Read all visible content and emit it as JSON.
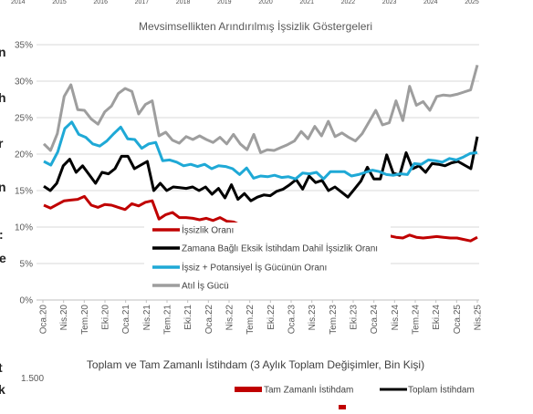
{
  "top_strip_years": [
    "2014",
    "2015",
    "2016",
    "2017",
    "2018",
    "2019",
    "2020",
    "2021",
    "2022",
    "2023",
    "2024",
    "2025"
  ],
  "edge_fragments": [
    "n",
    "h",
    "r",
    "n",
    ":",
    "e",
    "t",
    "k"
  ],
  "colors": {
    "unemployment": "#c00000",
    "time_related": "#000000",
    "potential": "#1fa9d6",
    "idle": "#9e9e9e",
    "grid": "#d9d9d9"
  },
  "chart_data": [
    {
      "type": "line",
      "title": "Mevsimsellikten Arındırılmış İşsizlik Göstergeleri",
      "ylim": [
        0,
        35
      ],
      "y_ticks": [
        "0%",
        "5%",
        "10%",
        "15%",
        "20%",
        "25%",
        "30%",
        "35%"
      ],
      "x_tick_labels": [
        "Oca.20",
        "Nis.20",
        "Tem.20",
        "Eki.20",
        "Oca.21",
        "Nis.21",
        "Tem.21",
        "Eki.21",
        "Oca.22",
        "Nis.22",
        "Tem.22",
        "Eki.22",
        "Oca.23",
        "Nis.23",
        "Tem.23",
        "Eki.23",
        "Oca.24",
        "Nis.24",
        "Tem.24",
        "Eki.24",
        "Oca.25",
        "Nis.25"
      ],
      "legend_position": "bottom-left",
      "series": [
        {
          "name": "İşsizlik Oranı",
          "color_key": "unemployment",
          "values": [
            13.0,
            12.6,
            13.1,
            13.6,
            13.7,
            13.8,
            14.2,
            13.0,
            12.7,
            13.1,
            13.0,
            12.7,
            12.4,
            13.2,
            12.9,
            13.4,
            13.6,
            11.1,
            11.7,
            12.0,
            11.3,
            11.3,
            11.2,
            11.0,
            11.2,
            10.9,
            11.3,
            10.8,
            10.7,
            10.3,
            10.4,
            10.0,
            10.2,
            10.3,
            10.0,
            10.2,
            10.0,
            9.8,
            10.0,
            10.2,
            9.8,
            9.5,
            9.4,
            9.3,
            9.1,
            9.0,
            8.6,
            8.8,
            8.6,
            8.9,
            8.7,
            8.8,
            8.6,
            8.5,
            8.9,
            8.6,
            8.5,
            8.6,
            8.7,
            8.6,
            8.5,
            8.5,
            8.3,
            8.1,
            8.6
          ]
        },
        {
          "name": "Zamana Bağlı Eksik İstihdam Dahil İşsizlik Oranı",
          "color_key": "time_related",
          "values": [
            15.6,
            15.0,
            16.0,
            18.4,
            19.3,
            17.5,
            18.4,
            17.2,
            16.0,
            17.5,
            17.3,
            18.0,
            19.7,
            19.7,
            18.0,
            18.5,
            19.0,
            15.0,
            16.0,
            15.0,
            15.5,
            15.4,
            15.3,
            15.5,
            15.0,
            15.5,
            14.5,
            15.3,
            14.0,
            15.8,
            13.8,
            14.6,
            13.6,
            14.1,
            14.4,
            14.3,
            14.9,
            15.2,
            15.8,
            16.5,
            15.2,
            17.0,
            16.1,
            16.4,
            15.0,
            15.5,
            14.8,
            14.1,
            15.2,
            16.3,
            18.2,
            16.6,
            16.6,
            19.9,
            17.4,
            17.1,
            20.2,
            18.0,
            18.4,
            17.5,
            18.7,
            18.6,
            18.4,
            18.8,
            19.0,
            18.5,
            18.0,
            22.4
          ]
        },
        {
          "name": "İşsiz + Potansiyel İş Gücünün Oranı",
          "color_key": "potential",
          "values": [
            19.0,
            18.5,
            20.3,
            23.5,
            24.4,
            22.7,
            22.3,
            21.4,
            21.1,
            21.8,
            22.8,
            23.7,
            22.1,
            22.0,
            20.8,
            21.4,
            21.6,
            19.1,
            19.2,
            18.9,
            18.4,
            18.6,
            18.3,
            18.6,
            18.0,
            18.4,
            18.3,
            18.0,
            17.2,
            18.1,
            16.7,
            17.0,
            16.9,
            17.1,
            16.8,
            16.9,
            16.6,
            17.4,
            17.3,
            17.5,
            16.6,
            17.6,
            17.6,
            17.6,
            17.0,
            17.2,
            17.5,
            17.8,
            17.6,
            17.2,
            17.1,
            17.3,
            17.2,
            18.7,
            18.6,
            19.2,
            19.1,
            18.9,
            19.4,
            19.2,
            19.6,
            20.1,
            20.2
          ]
        },
        {
          "name": "Atıl İş Gücü",
          "color_key": "idle",
          "values": [
            21.4,
            20.5,
            22.8,
            27.9,
            29.5,
            26.1,
            26.0,
            24.8,
            24.1,
            25.8,
            26.6,
            28.3,
            29.0,
            28.6,
            25.5,
            26.8,
            27.3,
            22.5,
            23.0,
            21.9,
            21.5,
            22.4,
            22.0,
            22.5,
            22.0,
            21.6,
            22.3,
            21.4,
            22.7,
            21.4,
            20.6,
            22.7,
            20.2,
            20.6,
            20.5,
            20.9,
            21.3,
            21.8,
            23.1,
            22.1,
            23.8,
            22.5,
            24.5,
            22.4,
            22.9,
            22.3,
            21.8,
            22.8,
            24.4,
            26.0,
            24.0,
            24.3,
            27.3,
            24.6,
            29.3,
            26.7,
            27.2,
            26.0,
            27.9,
            28.1,
            28.0,
            28.2,
            28.5,
            28.8,
            32.2
          ]
        }
      ]
    },
    {
      "type": "bar",
      "title": "Toplam ve Tam Zamanlı İstihdam (3 Aylık Toplam Değişimler, Bin Kişi)",
      "y_ticks": [
        "1.500"
      ],
      "legend_position": "top-right",
      "series": [
        {
          "name": "Tam Zamanlı İstihdam",
          "color_key": "unemployment"
        },
        {
          "name": "Toplam İstihdam",
          "color_key": "time_related"
        }
      ]
    }
  ]
}
